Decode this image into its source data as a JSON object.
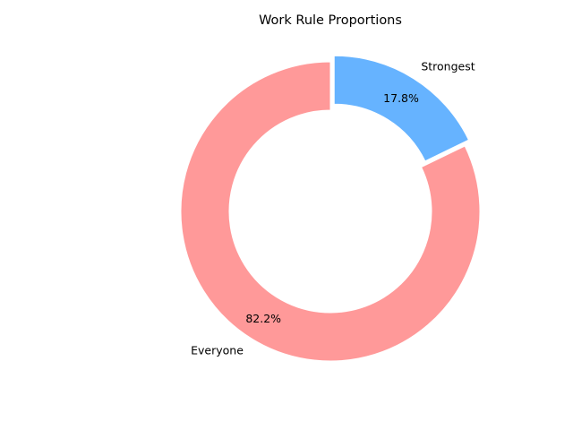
{
  "chart_data": {
    "type": "pie",
    "style": "donut",
    "title": "Work Rule Proportions",
    "slices": [
      {
        "label": "Strongest",
        "value": 17.8,
        "display": "17.8%",
        "color": "#66b3ff",
        "exploded": true
      },
      {
        "label": "Everyone",
        "value": 82.2,
        "display": "82.2%",
        "color": "#ff9999",
        "exploded": false
      }
    ],
    "legend": false
  }
}
